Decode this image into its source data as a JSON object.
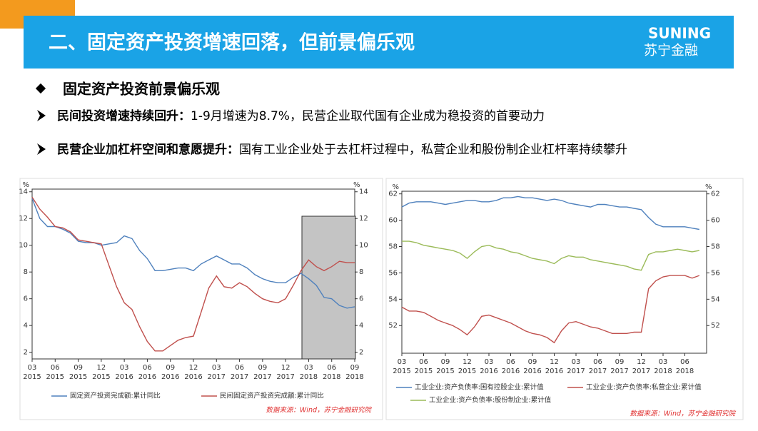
{
  "header": {
    "title": "二、固定资产投资增速回落，但前景偏乐观",
    "logo_en": "SUNING",
    "logo_cn": "苏宁金融"
  },
  "heading": "固定资产投资前景偏乐观",
  "bullets": [
    {
      "lead": "民间投资增速持续回升：",
      "text": "1-9月增速为8.7%，民营企业取代国有企业成为稳投资的首要动力"
    },
    {
      "lead": "民营企业加杠杆空间和意愿提升：",
      "text": "国有工业企业处于去杠杆过程中，私营企业和股份制企业杠杆率持续攀升"
    }
  ],
  "chart_data": [
    {
      "type": "line",
      "y_unit": "%",
      "y2_unit": "%",
      "categories": [
        "03",
        null,
        null,
        "06",
        null,
        null,
        "09",
        null,
        null,
        "12",
        null,
        null,
        "03",
        null,
        null,
        "06",
        null,
        null,
        "09",
        null,
        null,
        "12",
        null,
        null,
        "03",
        null,
        null,
        "06",
        null,
        null,
        "09",
        null,
        null,
        "12",
        null,
        null,
        "03",
        null,
        null,
        "06",
        null,
        null,
        "09"
      ],
      "years": [
        "2015",
        null,
        null,
        "2015",
        null,
        null,
        "2015",
        null,
        null,
        "2015",
        null,
        null,
        "2016",
        null,
        null,
        "2016",
        null,
        null,
        "2016",
        null,
        null,
        "2016",
        null,
        null,
        "2017",
        null,
        null,
        "2017",
        null,
        null,
        "2017",
        null,
        null,
        "2017",
        null,
        null,
        "2018",
        null,
        null,
        "2018",
        null,
        null,
        "2018"
      ],
      "ylim": [
        1.5,
        14.2
      ],
      "yticks": [
        2,
        4,
        6,
        8,
        10,
        12,
        14
      ],
      "y2lim": [
        1.5,
        14.2
      ],
      "y2ticks": [
        2,
        4,
        6,
        8,
        10,
        12,
        14
      ],
      "series": [
        {
          "name": "固定资产投资完成额:累计同比",
          "color": "#4f81bd",
          "values": [
            13.5,
            12.0,
            11.4,
            11.4,
            11.2,
            10.9,
            10.3,
            10.2,
            10.2,
            10.0,
            10.1,
            10.2,
            10.7,
            10.5,
            9.6,
            9.0,
            8.1,
            8.1,
            8.2,
            8.3,
            8.3,
            8.1,
            8.6,
            8.9,
            9.2,
            8.9,
            8.6,
            8.6,
            8.3,
            7.8,
            7.5,
            7.3,
            7.2,
            7.2,
            7.6,
            7.9,
            7.5,
            7.0,
            6.1,
            6.0,
            5.5,
            5.3,
            5.4
          ]
        },
        {
          "name": "民间固定资产投资完成额:累计同比",
          "color": "#c0504d",
          "axis": "y2",
          "values": [
            13.6,
            12.7,
            12.1,
            11.4,
            11.3,
            11.0,
            10.4,
            10.3,
            10.2,
            10.1,
            8.5,
            6.9,
            5.7,
            5.2,
            3.9,
            2.8,
            2.1,
            2.1,
            2.5,
            2.9,
            3.1,
            3.2,
            5.0,
            6.8,
            7.7,
            6.9,
            6.8,
            7.2,
            6.9,
            6.4,
            6.0,
            5.8,
            5.7,
            6.0,
            7.0,
            8.1,
            8.9,
            8.4,
            8.1,
            8.4,
            8.8,
            8.7,
            8.7
          ]
        }
      ],
      "source": "数据来源：Wind，苏宁金融研究院"
    },
    {
      "type": "line",
      "y_unit": "%",
      "y2_unit": "%",
      "categories": [
        "03",
        null,
        null,
        "06",
        null,
        null,
        "09",
        null,
        null,
        "12",
        null,
        null,
        "03",
        null,
        null,
        "06",
        null,
        null,
        "09",
        null,
        null,
        "12",
        null,
        null,
        "03",
        null,
        null,
        "06",
        null,
        null,
        "09",
        null,
        null,
        "12",
        null,
        null,
        "03",
        null,
        null,
        "06",
        null,
        null
      ],
      "years": [
        "2015",
        null,
        null,
        "2015",
        null,
        null,
        "2015",
        null,
        null,
        "2015",
        null,
        null,
        "2016",
        null,
        null,
        "2016",
        null,
        null,
        "2016",
        null,
        null,
        "2016",
        null,
        null,
        "2017",
        null,
        null,
        "2017",
        null,
        null,
        "2017",
        null,
        null,
        "2017",
        null,
        null,
        "2018",
        null,
        null,
        "2018",
        null,
        null
      ],
      "ylim": [
        49.9,
        62.2
      ],
      "yticks": [
        52,
        54,
        56,
        58,
        60,
        62
      ],
      "y2lim": [
        49.9,
        62.2
      ],
      "y2ticks": [
        52,
        54,
        56,
        58,
        60,
        62
      ],
      "series": [
        {
          "name": "工业企业:资产负债率:国有控股企业:累计值",
          "color": "#4f81bd",
          "values": [
            61.0,
            61.3,
            61.4,
            61.4,
            61.4,
            61.3,
            61.2,
            61.3,
            61.4,
            61.5,
            61.5,
            61.4,
            61.4,
            61.5,
            61.7,
            61.7,
            61.8,
            61.7,
            61.7,
            61.6,
            61.5,
            61.6,
            61.5,
            61.3,
            61.2,
            61.1,
            61.0,
            61.2,
            61.2,
            61.1,
            61.0,
            61.0,
            60.9,
            60.8,
            60.2,
            59.7,
            59.5,
            59.5,
            59.5,
            59.5,
            59.4,
            59.3
          ]
        },
        {
          "name": "工业企业:资产负债率:私营企业:累计值",
          "color": "#c0504d",
          "values": [
            53.4,
            53.1,
            53.1,
            53.0,
            52.7,
            52.4,
            52.2,
            52.0,
            51.7,
            51.3,
            51.9,
            52.7,
            52.8,
            52.6,
            52.4,
            52.2,
            51.9,
            51.6,
            51.4,
            51.3,
            51.1,
            50.7,
            51.6,
            52.2,
            52.3,
            52.1,
            51.9,
            51.8,
            51.6,
            51.4,
            51.4,
            51.4,
            51.5,
            51.5,
            54.8,
            55.4,
            55.7,
            55.8,
            55.8,
            55.8,
            55.6,
            55.8
          ]
        },
        {
          "name": "工业企业:资产负债率:股份制企业:累计值",
          "color": "#9bbb59",
          "values": [
            58.4,
            58.4,
            58.3,
            58.1,
            58.0,
            57.9,
            57.8,
            57.7,
            57.5,
            57.1,
            57.6,
            58.0,
            58.1,
            57.9,
            57.8,
            57.6,
            57.5,
            57.3,
            57.1,
            57.0,
            56.9,
            56.7,
            57.1,
            57.3,
            57.2,
            57.2,
            57.0,
            56.9,
            56.8,
            56.7,
            56.6,
            56.5,
            56.3,
            56.2,
            57.4,
            57.6,
            57.6,
            57.7,
            57.8,
            57.7,
            57.6,
            57.7
          ]
        }
      ],
      "source": "数据来源：Wind，苏宁金融研究院"
    }
  ]
}
